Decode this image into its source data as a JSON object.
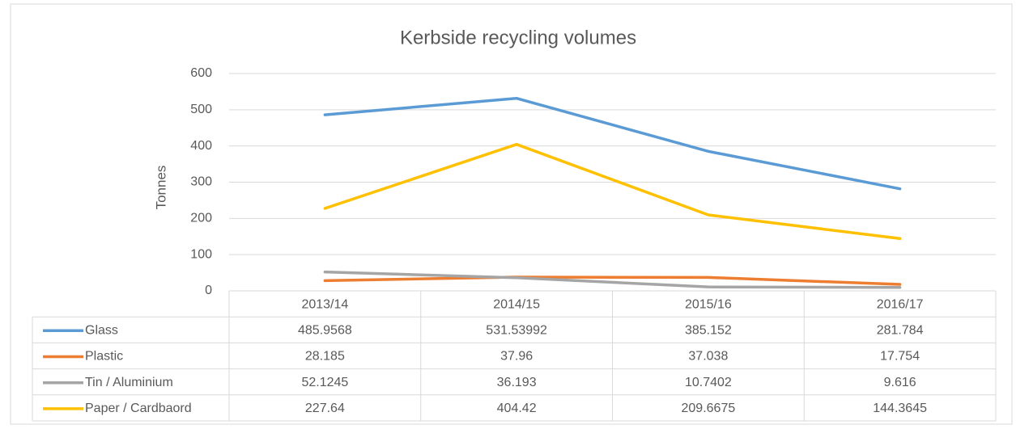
{
  "chart_data": {
    "type": "line",
    "title": "Kerbside recycling volumes",
    "y_label": "Tonnes",
    "categories": [
      "2013/14",
      "2014/15",
      "2015/16",
      "2016/17"
    ],
    "series": [
      {
        "name": "Glass",
        "color": "#5b9bd5",
        "values": [
          485.9568,
          531.53992,
          385.152,
          281.784
        ]
      },
      {
        "name": "Plastic",
        "color": "#ed7d31",
        "values": [
          28.185,
          37.96,
          37.038,
          17.754
        ]
      },
      {
        "name": "Tin / Aluminium",
        "color": "#a5a5a5",
        "values": [
          52.1245,
          36.193,
          10.7402,
          9.616
        ]
      },
      {
        "name": "Paper / Cardbaord",
        "color": "#ffc000",
        "values": [
          227.64,
          404.42,
          209.6675,
          144.3645
        ]
      }
    ],
    "ylim": [
      0,
      600
    ],
    "yticks": [
      0,
      100,
      200,
      300,
      400,
      500,
      600
    ],
    "grid": true,
    "data_table": true
  }
}
